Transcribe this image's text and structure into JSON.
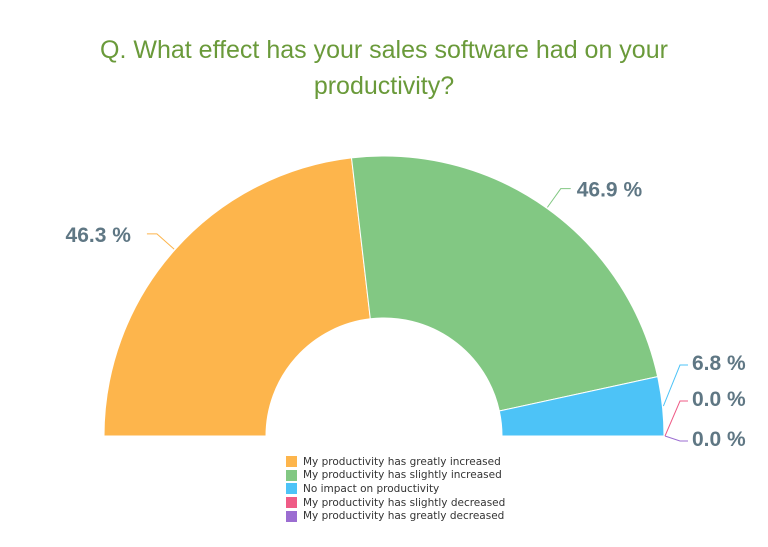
{
  "chart_data": {
    "type": "pie",
    "title": "Q. What effect has your sales software had on your productivity?",
    "series": [
      {
        "name": "My productivity has greatly increased",
        "value": 46.3,
        "label": "46.3 %",
        "color": "#fdb54c"
      },
      {
        "name": "My productivity has slightly increased",
        "value": 46.9,
        "label": "46.9 %",
        "color": "#82c883"
      },
      {
        "name": "No impact on productivity",
        "value": 6.8,
        "label": "6.8 %",
        "color": "#4dc3f7"
      },
      {
        "name": "My productivity has slightly decreased",
        "value": 0.0,
        "label": "0.0 %",
        "color": "#ef5b86"
      },
      {
        "name": "My productivity has greatly decreased",
        "value": 0.0,
        "label": "0.0 %",
        "color": "#9b6dd1"
      }
    ],
    "shape": "semi-donut",
    "legend": "bottom-center"
  }
}
